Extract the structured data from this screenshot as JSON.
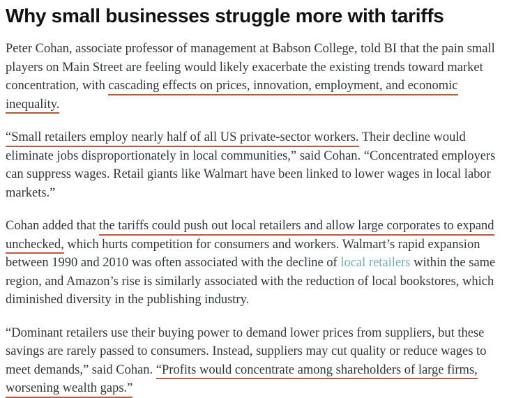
{
  "colors": {
    "headline": "#121212",
    "body_text": "#30363a",
    "underline_accent": "#c0583c",
    "link": "#72aebf",
    "page_background": "#ffffff"
  },
  "article": {
    "headline": "Why small businesses struggle more with tariffs",
    "paragraphs": [
      {
        "segments": [
          {
            "type": "normal",
            "text": "Peter Cohan, associate professor of management at Babson College, told BI that the pain small players on Main Street are feeling would likely exacerbate the existing trends toward market concentration, with "
          },
          {
            "type": "underline",
            "text": "cascading effects on prices, innovation, employment, and economic inequality."
          }
        ]
      },
      {
        "segments": [
          {
            "type": "underline",
            "text": "“Small retailers employ nearly half of all US private-sector workers."
          },
          {
            "type": "normal",
            "text": " Their decline would eliminate jobs disproportionately in local communities,” said Cohan. “Concentrated employers can suppress wages. Retail giants like Walmart have been linked to lower wages in local labor markets.”"
          }
        ]
      },
      {
        "segments": [
          {
            "type": "normal",
            "text": "Cohan added that "
          },
          {
            "type": "underline",
            "text": "the tariffs could push out local retailers and allow large corporates to expand unchecked,"
          },
          {
            "type": "normal",
            "text": " which hurts competition for consumers and workers. Walmart’s rapid expansion between 1990 and 2010 was often associated with the decline of "
          },
          {
            "type": "link",
            "name": "local-retailers-link",
            "text": "local retailers"
          },
          {
            "type": "normal",
            "text": " within the same region, and Amazon’s rise is similarly associated with the reduction of local bookstores, which diminished diversity in the publishing industry."
          }
        ]
      },
      {
        "segments": [
          {
            "type": "normal",
            "text": "“Dominant retailers use their buying power to demand lower prices from suppliers, but these savings are rarely passed to consumers. Instead, suppliers may cut quality or reduce wages to meet demands,” said Cohan. "
          },
          {
            "type": "underline",
            "text": "“Profits would concentrate among shareholders of large firms, worsening wealth gaps.”"
          }
        ]
      }
    ]
  }
}
